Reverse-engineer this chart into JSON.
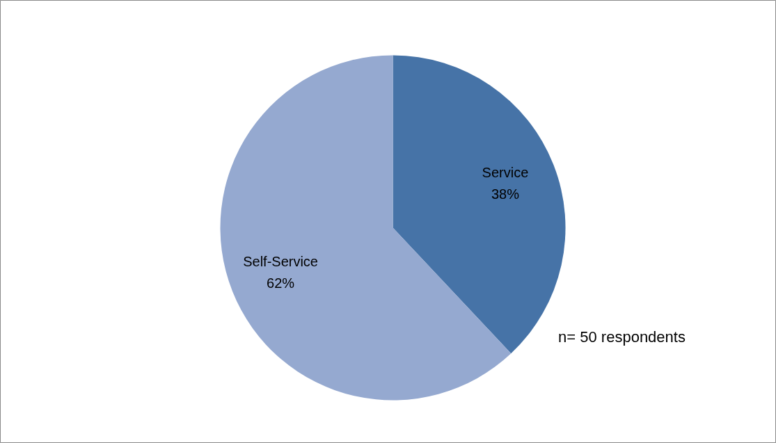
{
  "chart_data": {
    "type": "pie",
    "categories": [
      "Service",
      "Self-Service"
    ],
    "values": [
      38,
      62
    ],
    "colors": [
      "#4673a7",
      "#95a9d0"
    ],
    "value_labels": [
      "38%",
      "62%"
    ],
    "annotations": [
      "n= 50 respondents"
    ]
  }
}
